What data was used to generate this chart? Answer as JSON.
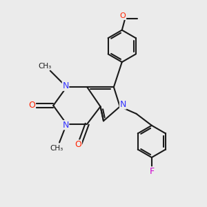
{
  "bg_color": "#ebebeb",
  "bond_color": "#1a1a1a",
  "n_color": "#3333ff",
  "o_color": "#ff2200",
  "f_color": "#cc00cc",
  "line_width": 1.5,
  "figsize": [
    3.0,
    3.0
  ],
  "dpi": 100,
  "xlim": [
    0,
    10
  ],
  "ylim": [
    0,
    10
  ]
}
